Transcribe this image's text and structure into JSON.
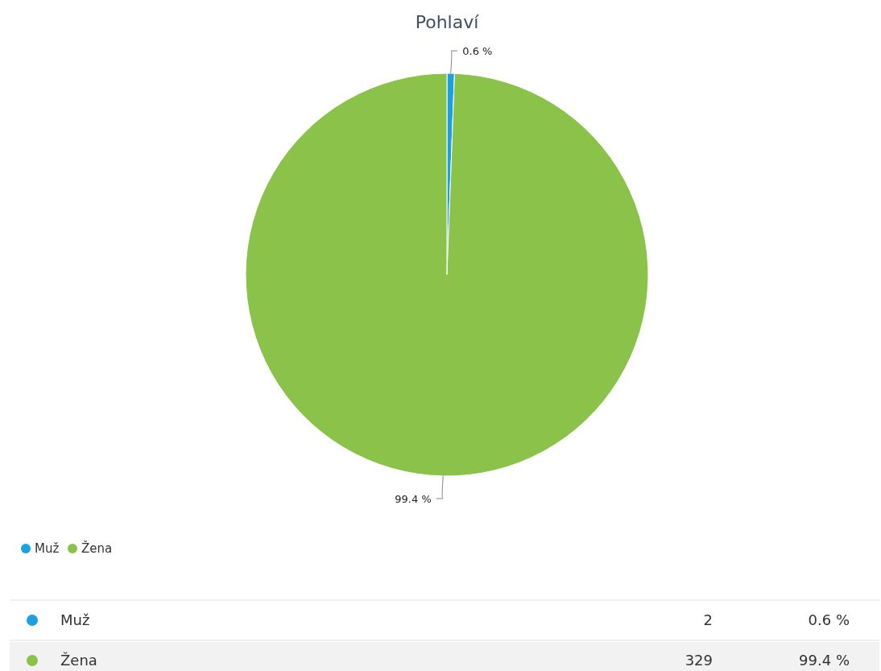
{
  "chart_data": [
    {
      "type": "pie",
      "title": "Pohlaví",
      "categories": [
        "Muž",
        "Žena"
      ],
      "values": [
        0.6,
        99.4
      ],
      "value_labels": [
        "0.6 %",
        "99.4 %"
      ],
      "colors": [
        "#1ba1e2",
        "#8bc34a"
      ],
      "legend": "bottom left"
    },
    {
      "type": "other",
      "categories": [
        "Muž",
        "Žena"
      ],
      "values": [
        2,
        329
      ],
      "annotations": [
        "0.6 %",
        "99.4 %"
      ],
      "colors": [
        "#1ba1e2",
        "#8bc34a"
      ],
      "data_labels": true
    }
  ]
}
